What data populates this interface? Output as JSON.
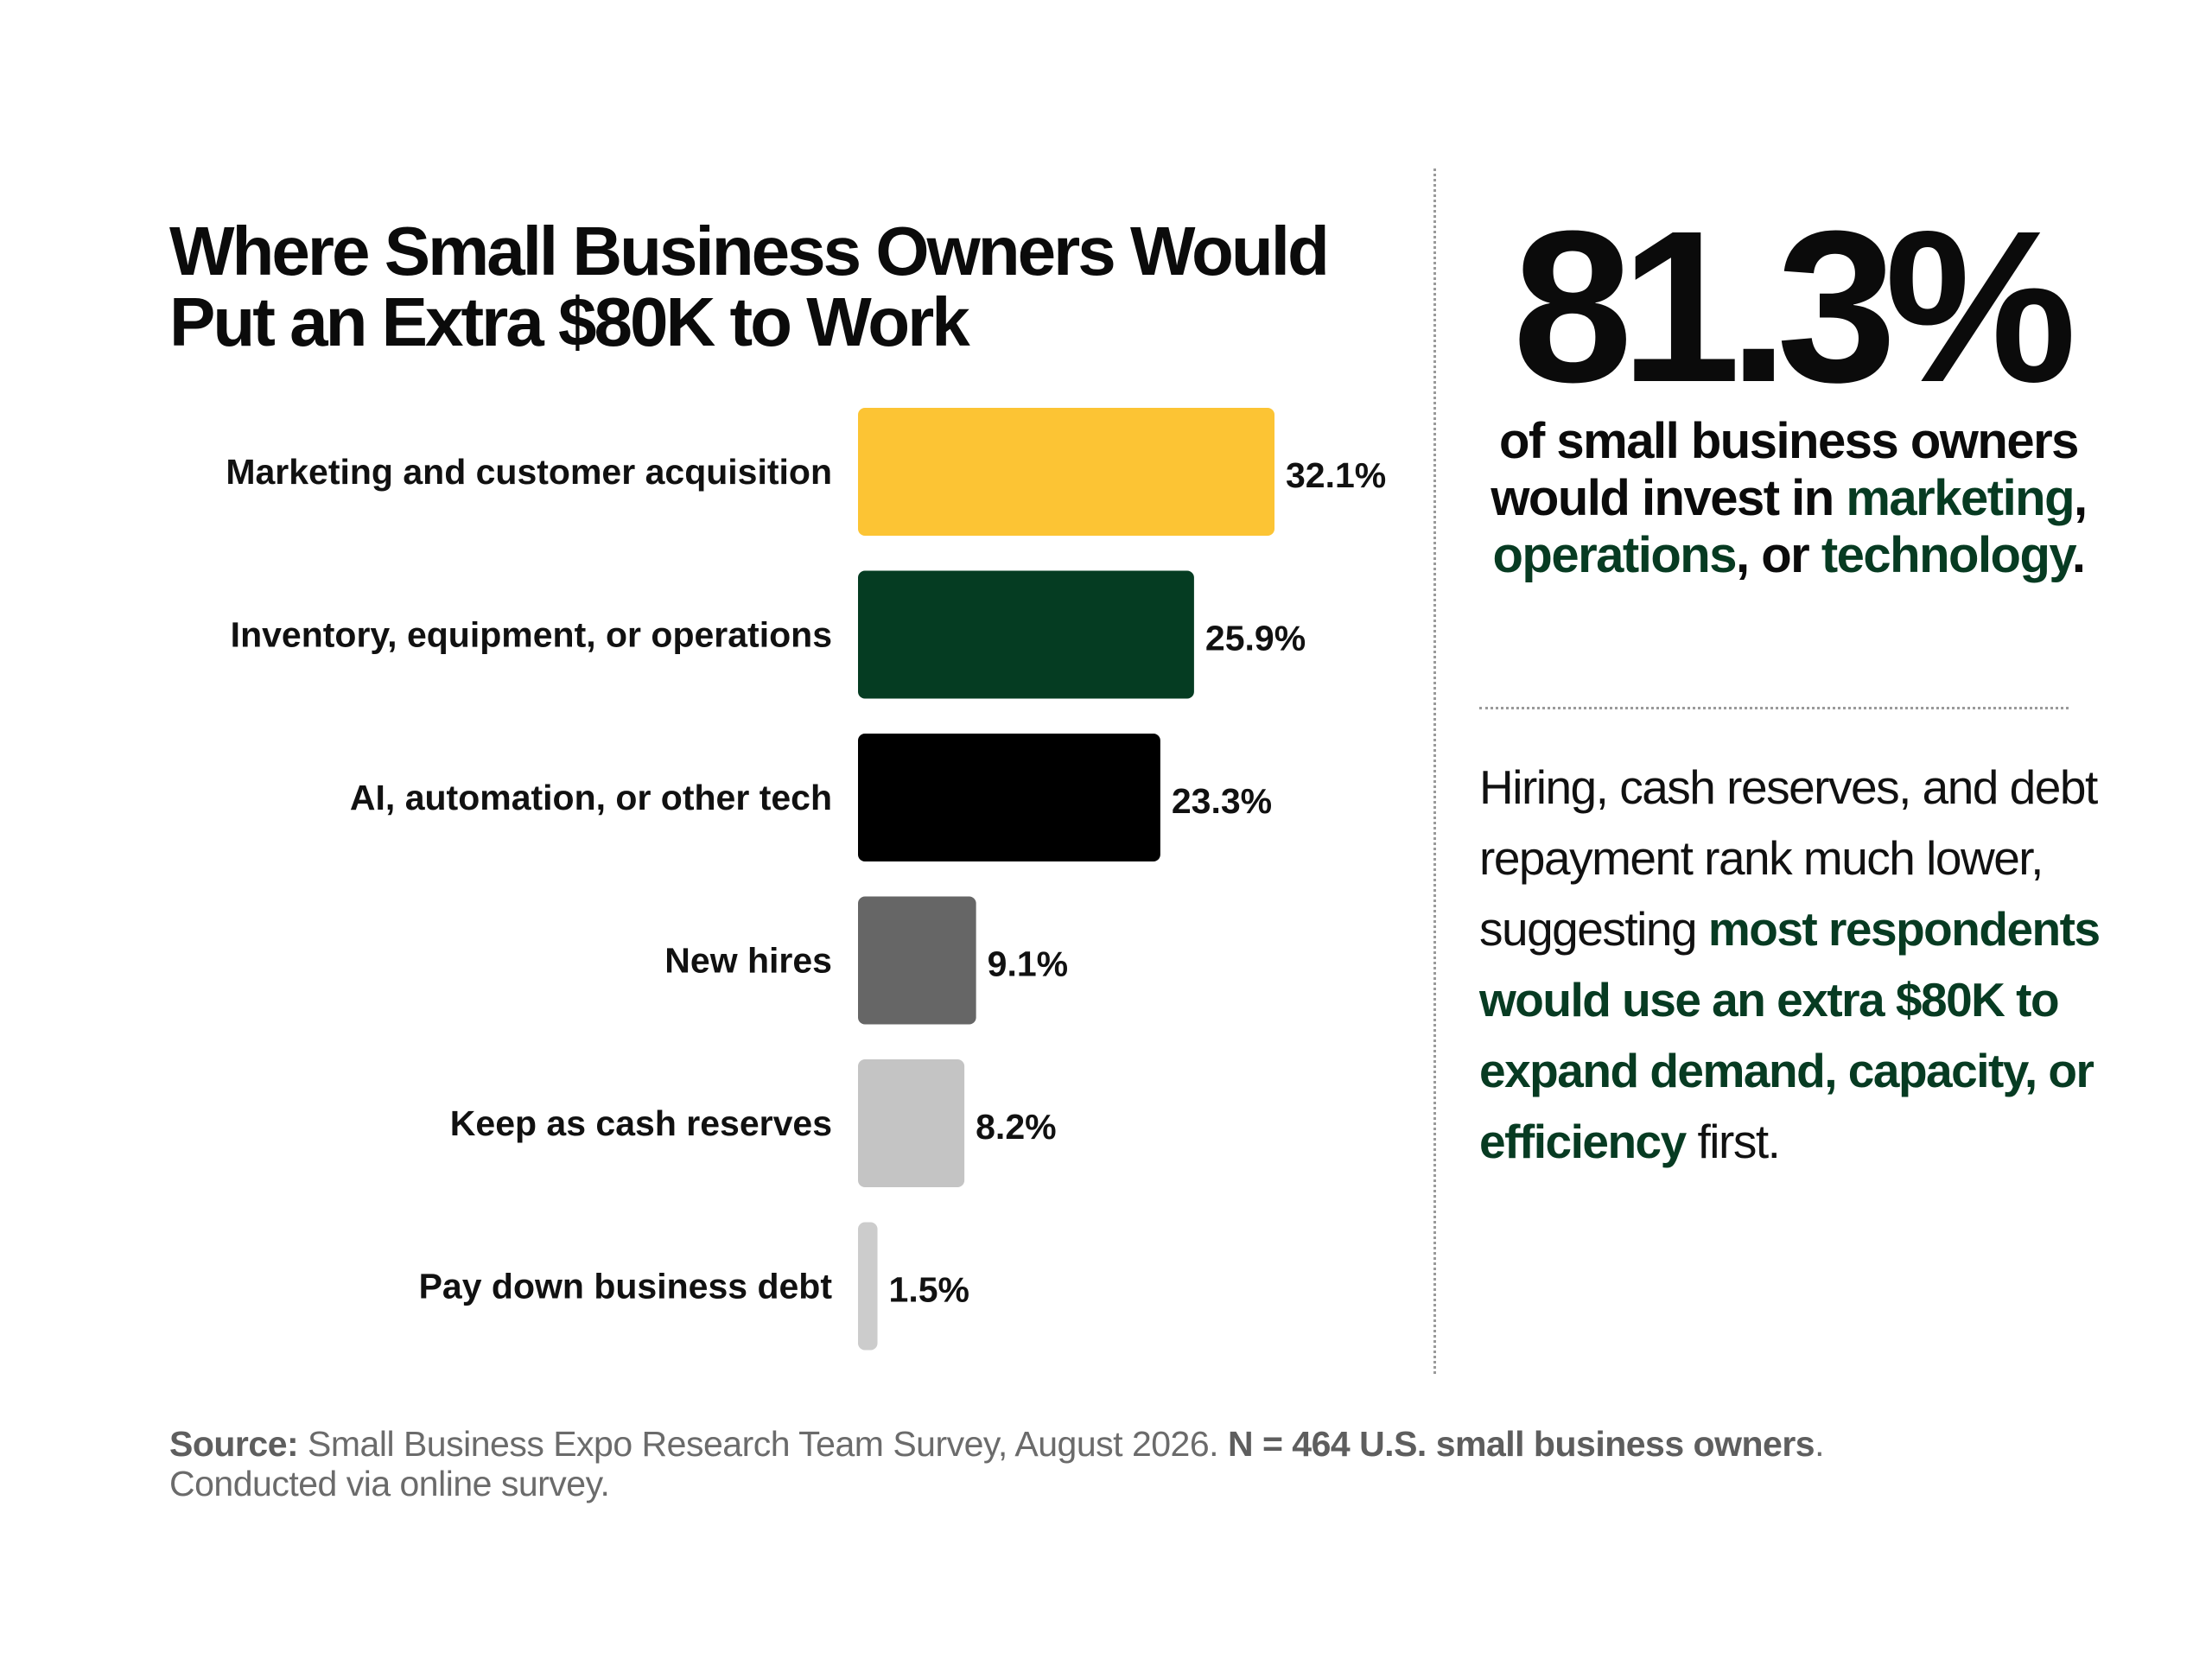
{
  "chart_data": {
    "type": "bar",
    "orientation": "horizontal",
    "title": "Where Small Business Owners Would Put an Extra $80K to Work",
    "categories": [
      "Marketing and customer acquisition",
      "Inventory, equipment, or operations",
      "AI, automation, or other tech",
      "New hires",
      "Keep as cash reserves",
      "Pay down business debt"
    ],
    "values": [
      32.1,
      25.9,
      23.3,
      9.1,
      8.2,
      1.5
    ],
    "value_labels": [
      "32.1%",
      "25.9%",
      "23.3%",
      "9.1%",
      "8.2%",
      "1.5%"
    ],
    "colors": [
      "#fcc434",
      "#053c22",
      "#000000",
      "#666666",
      "#c4c4c4",
      "#cccccc"
    ],
    "xlim": [
      0,
      32.1
    ],
    "grid": false,
    "legend": "none"
  },
  "highlight": {
    "stat": "81.3%",
    "text_1": "of small business owners would invest in ",
    "em_1": "marketing",
    "sep_1": ", ",
    "em_2": "operations",
    "sep_2": ", or ",
    "em_3": "technology",
    "end": "."
  },
  "insight": {
    "plain": "Hiring, cash reserves, and debt repayment rank much lower, suggesting ",
    "emphasis": "most respondents would use an extra $80K to expand demand, capacity, or efficiency",
    "end": " first."
  },
  "footer": {
    "source_label": "Source:",
    "source_text": " Small Business Expo Research Team Survey, August 2026. ",
    "sample": "N = 464 U.S. small business owners",
    "sample_end": ".",
    "method": "Conducted via online survey."
  },
  "colors": {
    "accent_green": "#073b22",
    "accent_yellow": "#fcc434"
  }
}
